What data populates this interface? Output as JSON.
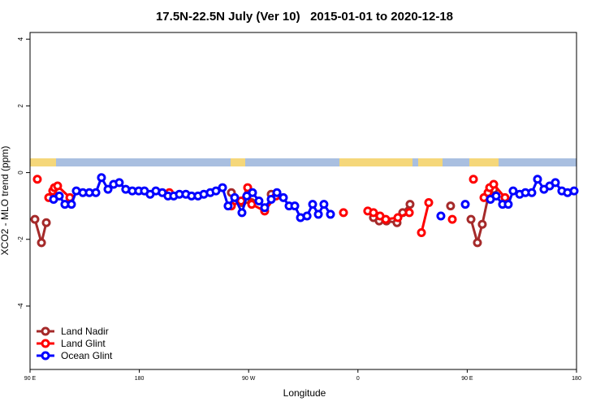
{
  "chart_data": {
    "type": "line",
    "title": "17.5N-22.5N July (Ver 10)   2015-01-01 to 2020-12-18",
    "x_label": "Longitude",
    "y_label": "XCO2 - MLO trend (ppm)",
    "xlim": [
      90,
      540
    ],
    "ylim": [
      -5.9,
      4.2
    ],
    "xticks": [
      {
        "value": 90,
        "label": "90 E"
      },
      {
        "value": 180,
        "label": "180"
      },
      {
        "value": 270,
        "label": "90 W"
      },
      {
        "value": 360,
        "label": "0"
      },
      {
        "value": 450,
        "label": "90 E"
      },
      {
        "value": 540,
        "label": "180"
      }
    ],
    "yticks": [
      -4,
      -2,
      0,
      2,
      4
    ],
    "legend": "bottom-left",
    "series": [
      {
        "name": "Land Nadir",
        "color": "#a52a2a",
        "x": [
          94.0,
          99.4,
          103.4,
          180,
          255.8,
          264.5,
          272.5,
          280,
          288.6,
          330,
          372.8,
          377.5,
          383.5,
          392.2,
          396.9,
          402.9,
          420,
          436.3,
          445,
          453.1,
          458.4,
          462.4,
          467.1,
          471.8
        ],
        "values": [
          -1.4,
          -2.1,
          -1.5,
          null,
          -0.6,
          -0.9,
          -0.9,
          null,
          -0.65,
          null,
          -1.35,
          -1.45,
          -1.45,
          -1.5,
          -1.2,
          -0.95,
          null,
          -1.0,
          null,
          -1.4,
          -2.1,
          -1.55,
          -0.75,
          -0.5
        ]
      },
      {
        "name": "Land Glint",
        "color": "#ff0000",
        "x": [
          96.0,
          100,
          105.4,
          108.7,
          110.1,
          112.7,
          122.8,
          160,
          204.7,
          230,
          255.8,
          263.8,
          269.2,
          272.5,
          283.2,
          292.6,
          320,
          348.1,
          360,
          368.1,
          372.8,
          378.2,
          382.9,
          392.9,
          402.3,
          408,
          412.3,
          418.3,
          428,
          437.7,
          446,
          455.1,
          460,
          463.8,
          467.1,
          468.5,
          471.8,
          481.1
        ],
        "values": [
          -0.2,
          null,
          -0.75,
          -0.55,
          -0.45,
          -0.4,
          -0.75,
          null,
          -0.6,
          null,
          -1.0,
          -0.85,
          -0.45,
          -0.95,
          -1.15,
          -0.7,
          null,
          -1.2,
          null,
          -1.15,
          -1.2,
          -1.3,
          -1.4,
          -1.35,
          -1.2,
          null,
          -1.8,
          -0.9,
          null,
          -1.4,
          null,
          -0.2,
          null,
          -0.75,
          -0.6,
          -0.45,
          -0.35,
          -0.75
        ]
      },
      {
        "name": "Ocean Glint",
        "color": "#0000ff",
        "x": [
          109.4,
          114.1,
          118.7,
          124.1,
          128.1,
          133.5,
          138.8,
          144.2,
          148.8,
          154.2,
          158.8,
          163.5,
          168.8,
          174.2,
          179.5,
          184.2,
          188.9,
          193.6,
          198.9,
          203.6,
          208.3,
          213.0,
          218.3,
          223.0,
          228.3,
          233.1,
          238.4,
          243.1,
          248.5,
          253.1,
          258.5,
          264.5,
          268.5,
          273.2,
          278.5,
          283.2,
          288.6,
          293.3,
          298.6,
          303.3,
          308.0,
          312.7,
          318.1,
          322.7,
          327.4,
          332.0,
          337.4,
          380,
          428.3,
          440,
          448.4,
          460,
          469.1,
          473.8,
          479.1,
          483.8,
          487.8,
          493.2,
          497.9,
          503.2,
          507.9,
          513.2,
          517.9,
          522.6,
          527.9,
          532.6,
          538.0
        ],
        "values": [
          -0.8,
          -0.7,
          -0.95,
          -0.95,
          -0.55,
          -0.6,
          -0.6,
          -0.6,
          -0.15,
          -0.5,
          -0.35,
          -0.3,
          -0.5,
          -0.55,
          -0.55,
          -0.55,
          -0.65,
          -0.55,
          -0.6,
          -0.7,
          -0.7,
          -0.65,
          -0.65,
          -0.7,
          -0.7,
          -0.65,
          -0.6,
          -0.55,
          -0.45,
          -1.0,
          -0.75,
          -1.2,
          -0.7,
          -0.6,
          -0.85,
          -1.05,
          -0.8,
          -0.6,
          -0.75,
          -1.0,
          -1.0,
          -1.35,
          -1.3,
          -0.95,
          -1.25,
          -0.95,
          -1.25,
          null,
          -1.3,
          null,
          -0.95,
          null,
          -0.8,
          -0.7,
          -0.95,
          -0.95,
          -0.55,
          -0.65,
          -0.6,
          -0.6,
          -0.2,
          -0.5,
          -0.4,
          -0.3,
          -0.55,
          -0.6,
          -0.55
        ]
      }
    ]
  }
}
